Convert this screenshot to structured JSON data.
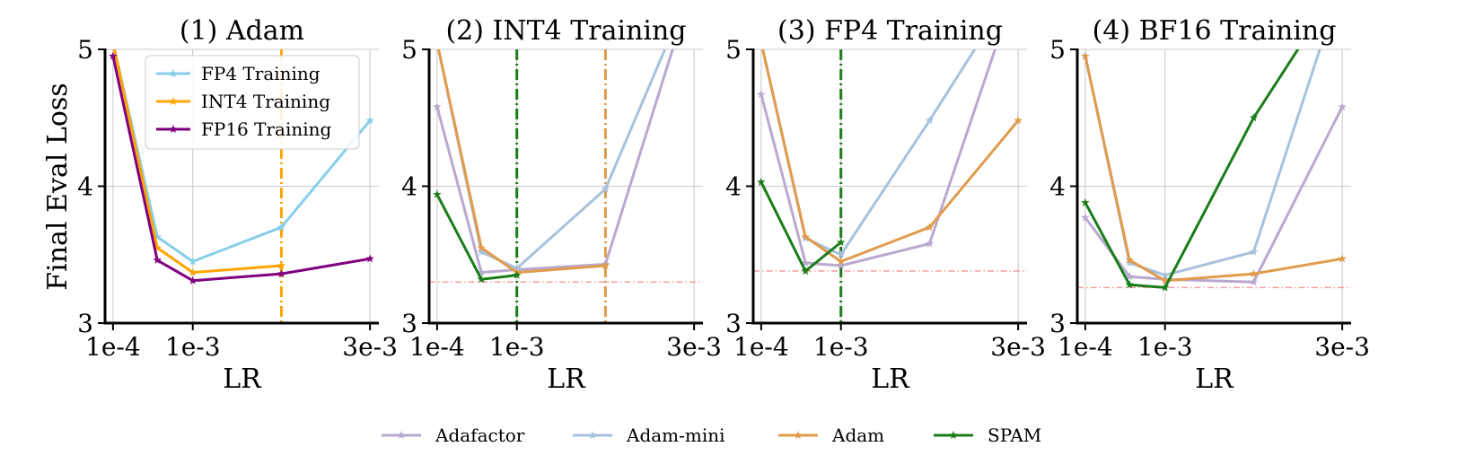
{
  "figure": {
    "shared_ylabel": "Final Eval Loss",
    "shared_legend": [
      {
        "name": "Adafactor",
        "color": "#b9a9cf"
      },
      {
        "name": "Adam-mini",
        "color": "#a7c2dc"
      },
      {
        "name": "Adam",
        "color": "#e09b4c"
      },
      {
        "name": "SPAM",
        "color": "#1a7d1a"
      }
    ]
  },
  "chart_data": [
    {
      "type": "line",
      "title": "(1) Adam",
      "xlabel": "LR",
      "ylabel": "Final Eval Loss",
      "x_scale": "linear",
      "x_ticks": [
        "1e-4",
        "1e-3",
        "3e-3"
      ],
      "y_ticks": [
        "3",
        "4",
        "5"
      ],
      "ylim": [
        3,
        5
      ],
      "grid": true,
      "legend_position": "top-left",
      "x": [
        0.0001,
        0.0006,
        0.001,
        0.002,
        0.003
      ],
      "series": [
        {
          "name": "FP4 Training",
          "color": "#87ceeb",
          "values": [
            5.05,
            3.63,
            3.45,
            3.7,
            4.48
          ]
        },
        {
          "name": "INT4 Training",
          "color": "#ffa500",
          "values": [
            5.05,
            3.55,
            3.37,
            3.42,
            null
          ]
        },
        {
          "name": "FP16 Training",
          "color": "#800080",
          "values": [
            4.95,
            3.46,
            3.31,
            3.36,
            3.47
          ]
        }
      ],
      "vlines": [
        {
          "x": 0.002,
          "color": "#ffa500",
          "style": "dashdot"
        }
      ],
      "hlines": []
    },
    {
      "type": "line",
      "title": "(2) INT4 Training",
      "xlabel": "LR",
      "x_scale": "linear",
      "x_ticks": [
        "1e-4",
        "1e-3",
        "3e-3"
      ],
      "y_ticks": [
        "3",
        "4",
        "5"
      ],
      "ylim": [
        3,
        5
      ],
      "grid": true,
      "x": [
        0.0001,
        0.0006,
        0.001,
        0.002,
        0.003
      ],
      "series": [
        {
          "name": "Adafactor",
          "color": "#b9a9cf",
          "values": [
            4.58,
            3.37,
            3.39,
            3.43,
            5.5
          ]
        },
        {
          "name": "Adam-mini",
          "color": "#a7c2dc",
          "values": [
            5.05,
            3.52,
            3.4,
            3.98,
            5.5
          ]
        },
        {
          "name": "Adam",
          "color": "#e09b4c",
          "values": [
            5.05,
            3.55,
            3.37,
            3.42,
            null
          ]
        },
        {
          "name": "SPAM",
          "color": "#1a7d1a",
          "values": [
            3.94,
            3.32,
            3.35,
            null,
            null
          ]
        }
      ],
      "vlines": [
        {
          "x": 0.001,
          "color": "#1a7d1a",
          "style": "dashdot"
        },
        {
          "x": 0.002,
          "color": "#e09b4c",
          "style": "dashdot"
        }
      ],
      "hlines": [
        {
          "y": 3.3,
          "color": "#f4a0a0",
          "style": "dashdot"
        }
      ]
    },
    {
      "type": "line",
      "title": "(3) FP4 Training",
      "xlabel": "LR",
      "x_scale": "linear",
      "x_ticks": [
        "1e-4",
        "1e-3",
        "3e-3"
      ],
      "y_ticks": [
        "3",
        "4",
        "5"
      ],
      "ylim": [
        3,
        5
      ],
      "grid": true,
      "x": [
        0.0001,
        0.0006,
        0.001,
        0.002,
        0.003
      ],
      "series": [
        {
          "name": "Adafactor",
          "color": "#b9a9cf",
          "values": [
            4.67,
            3.44,
            3.42,
            3.58,
            5.5
          ]
        },
        {
          "name": "Adam-mini",
          "color": "#a7c2dc",
          "values": [
            5.05,
            3.62,
            3.5,
            4.48,
            5.5
          ]
        },
        {
          "name": "Adam",
          "color": "#e09b4c",
          "values": [
            5.05,
            3.63,
            3.45,
            3.7,
            4.48
          ]
        },
        {
          "name": "SPAM",
          "color": "#1a7d1a",
          "values": [
            4.03,
            3.38,
            3.59,
            null,
            null
          ]
        }
      ],
      "vlines": [
        {
          "x": 0.001,
          "color": "#1a7d1a",
          "style": "dashdot"
        }
      ],
      "hlines": [
        {
          "y": 3.38,
          "color": "#f4a0a0",
          "style": "dashdot"
        }
      ]
    },
    {
      "type": "line",
      "title": "(4) BF16 Training",
      "xlabel": "LR",
      "x_scale": "linear",
      "x_ticks": [
        "1e-4",
        "1e-3",
        "3e-3"
      ],
      "y_ticks": [
        "3",
        "4",
        "5"
      ],
      "ylim": [
        3,
        5
      ],
      "grid": true,
      "x": [
        0.0001,
        0.0006,
        0.001,
        0.002,
        0.003
      ],
      "series": [
        {
          "name": "Adafactor",
          "color": "#b9a9cf",
          "values": [
            3.77,
            3.34,
            3.32,
            3.3,
            4.58
          ]
        },
        {
          "name": "Adam-mini",
          "color": "#a7c2dc",
          "values": [
            4.95,
            3.44,
            3.35,
            3.52,
            5.5
          ]
        },
        {
          "name": "Adam",
          "color": "#e09b4c",
          "values": [
            4.95,
            3.46,
            3.31,
            3.36,
            3.47
          ]
        },
        {
          "name": "SPAM",
          "color": "#1a7d1a",
          "values": [
            3.88,
            3.28,
            3.26,
            4.5,
            5.5
          ]
        }
      ],
      "vlines": [],
      "hlines": [
        {
          "y": 3.26,
          "color": "#f4a0a0",
          "style": "dashdot"
        }
      ]
    }
  ]
}
